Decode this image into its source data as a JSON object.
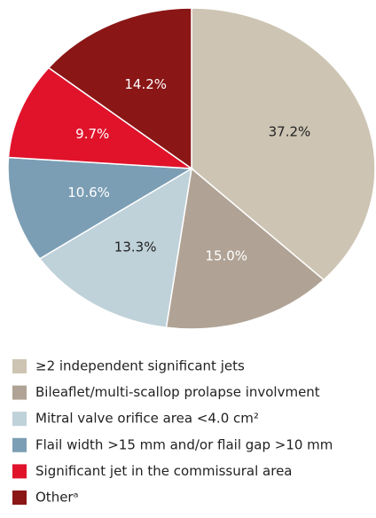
{
  "chart_data": {
    "type": "pie",
    "categories": [
      "≥2 independent significant jets",
      "Bileaflet/multi-scallop prolapse involvment",
      "Mitral valve orifice area <4.0 cm²",
      "Flail width >15 mm and/or flail gap >10 mm",
      "Significant jet in the commissural area",
      "Otherᵃ"
    ],
    "values": [
      37.2,
      15.0,
      13.3,
      10.6,
      9.7,
      14.2
    ],
    "value_labels": [
      "37.2%",
      "15.0%",
      "13.3%",
      "10.6%",
      "9.7%",
      "14.2%"
    ],
    "colors": [
      "#cdc4b3",
      "#b0a395",
      "#bfd1d9",
      "#7b9eb4",
      "#e0132b",
      "#8a1616"
    ],
    "label_colors": [
      "#222222",
      "#ffffff",
      "#222222",
      "#ffffff",
      "#ffffff",
      "#ffffff"
    ]
  }
}
